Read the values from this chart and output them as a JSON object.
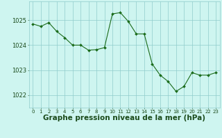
{
  "x": [
    0,
    1,
    2,
    3,
    4,
    5,
    6,
    7,
    8,
    9,
    10,
    11,
    12,
    13,
    14,
    15,
    16,
    17,
    18,
    19,
    20,
    21,
    22,
    23
  ],
  "y": [
    1024.85,
    1024.75,
    1024.9,
    1024.55,
    1024.3,
    1024.0,
    1024.0,
    1023.8,
    1023.82,
    1023.9,
    1025.25,
    1025.3,
    1024.95,
    1024.45,
    1024.45,
    1023.25,
    1022.8,
    1022.55,
    1022.15,
    1022.35,
    1022.9,
    1022.8,
    1022.8,
    1022.9
  ],
  "line_color": "#1a6b1a",
  "marker": "D",
  "marker_size": 2.0,
  "bg_color": "#cef5f0",
  "grid_color": "#90cccc",
  "xlabel": "Graphe pression niveau de la mer (hPa)",
  "xlabel_fontsize": 7.5,
  "xlabel_color": "#1a4a1a",
  "tick_label_color": "#1a4a1a",
  "xlim": [
    -0.5,
    23.5
  ],
  "ylim": [
    1021.5,
    1025.75
  ],
  "yticks": [
    1022,
    1023,
    1024,
    1025
  ],
  "xticks": [
    0,
    1,
    2,
    3,
    4,
    5,
    6,
    7,
    8,
    9,
    10,
    11,
    12,
    13,
    14,
    15,
    16,
    17,
    18,
    19,
    20,
    21,
    22,
    23
  ]
}
